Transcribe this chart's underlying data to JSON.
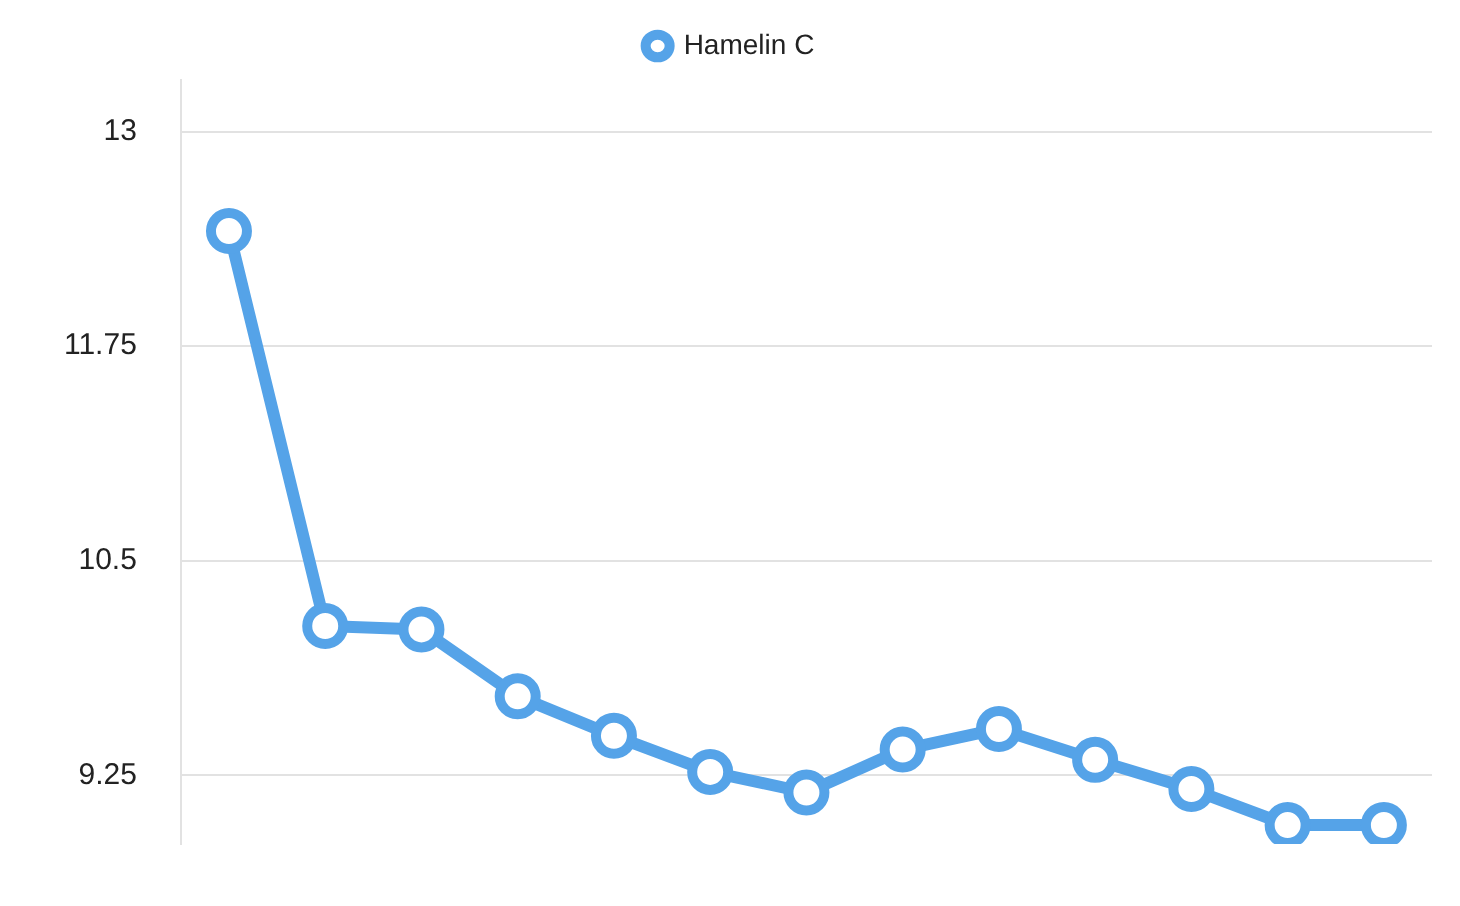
{
  "chart_data": {
    "type": "line",
    "categories": [
      null,
      null,
      null,
      null,
      null,
      null,
      null,
      null,
      null,
      null,
      null,
      null,
      null
    ],
    "series": [
      {
        "name": "Hamelin C",
        "color": "#55a3e8",
        "values": [
          12.42,
          10.12,
          10.1,
          9.71,
          9.48,
          9.27,
          9.15,
          9.4,
          9.52,
          9.34,
          9.17,
          8.96,
          8.96
        ]
      }
    ],
    "ylim": [
      8.85,
      13.3
    ],
    "yticks": [
      9.25,
      10.5,
      11.75,
      13
    ],
    "grid": "y",
    "legend": "top",
    "marker": "circle",
    "line_style": "solid"
  }
}
